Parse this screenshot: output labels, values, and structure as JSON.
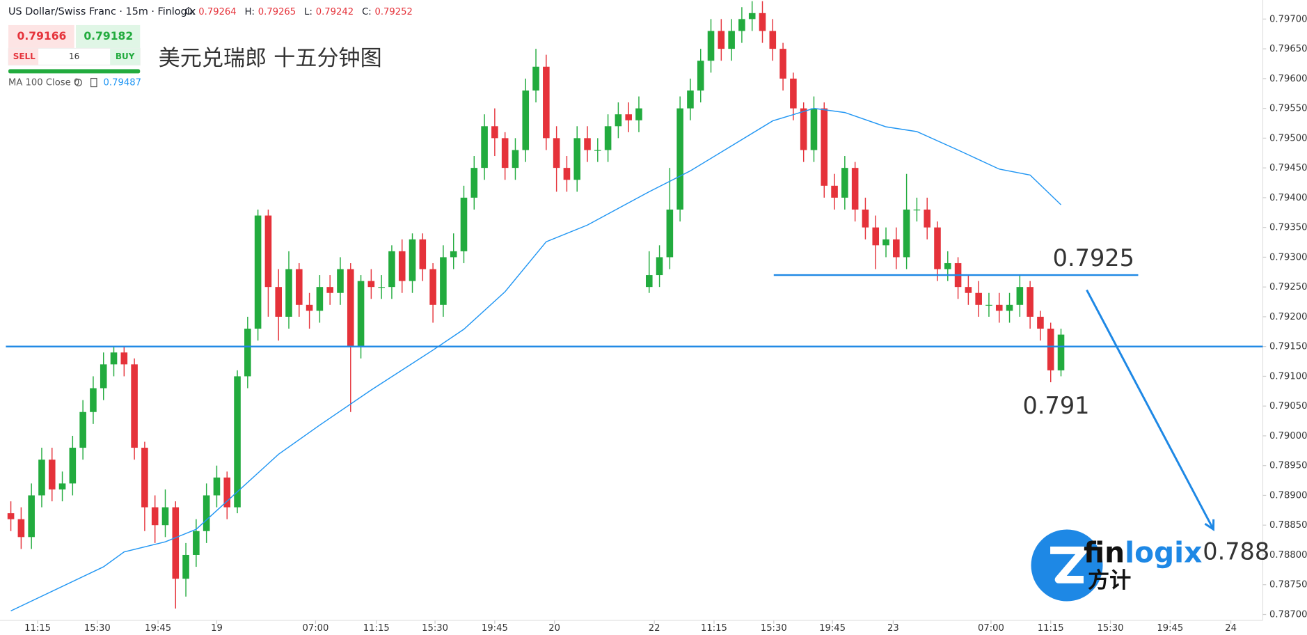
{
  "header": {
    "symbol": "US Dollar/Swiss Franc · 15m · Finlogix",
    "ohlc": [
      {
        "label": "O:",
        "value": 0.79264
      },
      {
        "label": "H:",
        "value": 0.79265
      },
      {
        "label": "L:",
        "value": 0.79242
      },
      {
        "label": "C:",
        "value": 0.79252
      }
    ],
    "sell_price": 0.79166,
    "sell": "SELL",
    "spread": 16,
    "buy_price": 0.79182,
    "buy": "BUY",
    "indicator": "MA 100 Close 0",
    "indicator_value": 0.79487
  },
  "chart_data": {
    "type": "candlestick",
    "title": "美元兑瑞郎 十五分钟图",
    "up_color": "#22ab3e",
    "down_color": "#e5323a",
    "open": [
      0.7887,
      0.7886,
      0.7883,
      0.789,
      0.7896,
      0.7891,
      0.7892,
      0.7898,
      0.7904,
      0.7908,
      0.7912,
      0.7914,
      0.7912,
      0.7898,
      0.7888,
      0.7885,
      0.7888,
      0.7876,
      0.788,
      0.7884,
      0.789,
      0.7893,
      0.7888,
      0.791,
      0.7918,
      0.7937,
      0.7925,
      0.792,
      0.7928,
      0.7922,
      0.7921,
      0.7925,
      0.7924,
      0.7928,
      0.7915,
      0.7926,
      0.7925,
      0.7925,
      0.7931,
      0.7926,
      0.7933,
      0.7928,
      0.7922,
      0.793,
      0.7931,
      0.794,
      0.7945,
      0.7952,
      0.795,
      0.7945,
      0.7948,
      0.7958,
      0.7962,
      0.795,
      0.7945,
      0.7943,
      0.795,
      0.7948,
      0.7948,
      0.7952,
      0.7954,
      0.7953,
      0.7925,
      0.7927,
      0.793,
      0.7938,
      0.7955,
      0.7958,
      0.7963,
      0.7968,
      0.7965,
      0.7968,
      0.797,
      0.7971,
      0.7968,
      0.7965,
      0.796,
      0.7955,
      0.7948,
      0.7955,
      0.7942,
      0.794,
      0.7945,
      0.7938,
      0.7935,
      0.7932,
      0.7933,
      0.793,
      0.7938,
      0.7938,
      0.7935,
      0.7928,
      0.7929,
      0.7925,
      0.7924,
      0.7922,
      0.7922,
      0.7921,
      0.7922,
      0.7925,
      0.792,
      0.7918,
      0.7911
    ],
    "high": [
      0.7889,
      0.7888,
      0.7892,
      0.7898,
      0.7898,
      0.7894,
      0.79,
      0.7906,
      0.791,
      0.7914,
      0.7915,
      0.7915,
      0.7913,
      0.7899,
      0.789,
      0.7891,
      0.7889,
      0.7882,
      0.7886,
      0.7892,
      0.7895,
      0.7894,
      0.7911,
      0.792,
      0.7938,
      0.7938,
      0.7928,
      0.7931,
      0.7929,
      0.7924,
      0.7927,
      0.7927,
      0.793,
      0.7929,
      0.7927,
      0.7928,
      0.7927,
      0.7932,
      0.7933,
      0.7934,
      0.7934,
      0.7929,
      0.7932,
      0.7934,
      0.7942,
      0.7947,
      0.7954,
      0.7955,
      0.7951,
      0.795,
      0.796,
      0.7965,
      0.7964,
      0.7952,
      0.7947,
      0.7952,
      0.7952,
      0.795,
      0.7954,
      0.7956,
      0.7956,
      0.7957,
      0.7931,
      0.7932,
      0.7945,
      0.7957,
      0.796,
      0.7965,
      0.797,
      0.797,
      0.797,
      0.7972,
      0.7973,
      0.7973,
      0.797,
      0.7966,
      0.7961,
      0.7956,
      0.7957,
      0.7956,
      0.7944,
      0.7947,
      0.7946,
      0.794,
      0.7937,
      0.7935,
      0.7935,
      0.7944,
      0.794,
      0.794,
      0.7936,
      0.7931,
      0.793,
      0.7927,
      0.7926,
      0.7924,
      0.7924,
      0.7924,
      0.7927,
      0.7926,
      0.7921,
      0.7919,
      0.7918
    ],
    "low": [
      0.7884,
      0.7881,
      0.7881,
      0.7888,
      0.7889,
      0.7889,
      0.789,
      0.7896,
      0.7902,
      0.7906,
      0.791,
      0.791,
      0.7896,
      0.7884,
      0.7882,
      0.7883,
      0.7871,
      0.7873,
      0.7878,
      0.7882,
      0.7888,
      0.7886,
      0.7887,
      0.7908,
      0.7916,
      0.792,
      0.7916,
      0.7918,
      0.792,
      0.7918,
      0.7919,
      0.7922,
      0.7922,
      0.7904,
      0.7913,
      0.7923,
      0.7923,
      0.7923,
      0.7924,
      0.7924,
      0.7926,
      0.7919,
      0.792,
      0.7928,
      0.7929,
      0.7938,
      0.7943,
      0.7947,
      0.7943,
      0.7943,
      0.7946,
      0.7956,
      0.7948,
      0.7941,
      0.7941,
      0.7941,
      0.7946,
      0.7946,
      0.7946,
      0.795,
      0.7951,
      0.7951,
      0.7924,
      0.7925,
      0.7928,
      0.7936,
      0.7953,
      0.7956,
      0.7961,
      0.7963,
      0.7963,
      0.7966,
      0.7968,
      0.7966,
      0.7963,
      0.7958,
      0.7953,
      0.7946,
      0.7946,
      0.794,
      0.7938,
      0.7938,
      0.7936,
      0.7933,
      0.7928,
      0.793,
      0.7928,
      0.7928,
      0.7936,
      0.7933,
      0.7926,
      0.7926,
      0.7923,
      0.7922,
      0.792,
      0.792,
      0.7919,
      0.7919,
      0.792,
      0.7918,
      0.7916,
      0.7909,
      0.791
    ],
    "close": [
      0.7886,
      0.7883,
      0.789,
      0.7896,
      0.7891,
      0.7892,
      0.7898,
      0.7904,
      0.7908,
      0.7912,
      0.7914,
      0.7912,
      0.7898,
      0.7888,
      0.7885,
      0.7888,
      0.7876,
      0.788,
      0.7884,
      0.789,
      0.7893,
      0.7888,
      0.791,
      0.7918,
      0.7937,
      0.7925,
      0.792,
      0.7928,
      0.7922,
      0.7921,
      0.7925,
      0.7924,
      0.7928,
      0.7915,
      0.7926,
      0.7925,
      0.7925,
      0.7931,
      0.7926,
      0.7933,
      0.7928,
      0.7922,
      0.793,
      0.7931,
      0.794,
      0.7945,
      0.7952,
      0.795,
      0.7945,
      0.7948,
      0.7958,
      0.7962,
      0.795,
      0.7945,
      0.7943,
      0.795,
      0.7948,
      0.7948,
      0.7952,
      0.7954,
      0.7953,
      0.7955,
      0.7927,
      0.793,
      0.7938,
      0.7955,
      0.7958,
      0.7963,
      0.7968,
      0.7965,
      0.7968,
      0.797,
      0.7971,
      0.7968,
      0.7965,
      0.796,
      0.7955,
      0.7948,
      0.7955,
      0.7942,
      0.794,
      0.7945,
      0.7938,
      0.7935,
      0.7932,
      0.7933,
      0.793,
      0.7938,
      0.7938,
      0.7935,
      0.7928,
      0.7929,
      0.7925,
      0.7924,
      0.7922,
      0.7922,
      0.7921,
      0.7922,
      0.7925,
      0.792,
      0.7918,
      0.7911,
      0.7917
    ],
    "ma": {
      "color": "#2196f3",
      "x": [
        0,
        9,
        11,
        15,
        18,
        22,
        26,
        30,
        35,
        41,
        44,
        48,
        52,
        56,
        62,
        66,
        70,
        74,
        78,
        81,
        85,
        88,
        92,
        96,
        99,
        102
      ],
      "values": [
        0.78706,
        0.7878,
        0.78805,
        0.78822,
        0.78843,
        0.78906,
        0.78969,
        0.79018,
        0.79077,
        0.79144,
        0.79179,
        0.79242,
        0.79326,
        0.79354,
        0.7941,
        0.79445,
        0.79487,
        0.79529,
        0.7955,
        0.79543,
        0.79519,
        0.79511,
        0.7948,
        0.79448,
        0.79438,
        0.79388
      ]
    },
    "levels": [
      {
        "value": 0.7915
      },
      {
        "value": 0.7927,
        "from": 74.1,
        "to": 109.5
      }
    ],
    "arrow": {
      "x": [
        104.5,
        116.8
      ],
      "y": [
        0.79245,
        0.78843
      ]
    },
    "annotations": [
      "0.7925",
      "0.791",
      "0.788"
    ],
    "xlim": [
      -1.05,
      121.6
    ],
    "ylim": [
      0.7869,
      0.79732
    ],
    "xticks": [
      {
        "value": 2.6,
        "label": "11:15"
      },
      {
        "value": 8.4,
        "label": "15:30"
      },
      {
        "value": 14.3,
        "label": "19:45"
      },
      {
        "value": 20,
        "label": "19"
      },
      {
        "value": 29.6,
        "label": "07:00"
      },
      {
        "value": 35.5,
        "label": "11:15"
      },
      {
        "value": 41.2,
        "label": "15:30"
      },
      {
        "value": 47,
        "label": "19:45"
      },
      {
        "value": 52.8,
        "label": "20"
      },
      {
        "value": 62.5,
        "label": "22"
      },
      {
        "value": 68.3,
        "label": "11:15"
      },
      {
        "value": 74.1,
        "label": "15:30"
      },
      {
        "value": 79.8,
        "label": "19:45"
      },
      {
        "value": 85.7,
        "label": "23"
      },
      {
        "value": 95.2,
        "label": "07:00"
      },
      {
        "value": 101,
        "label": "11:15"
      },
      {
        "value": 106.8,
        "label": "15:30"
      },
      {
        "value": 112.6,
        "label": "19:45"
      },
      {
        "value": 118.5,
        "label": "24"
      }
    ],
    "yticks": [
      {
        "value": 0.787,
        "label": "0.78700"
      },
      {
        "value": 0.7875,
        "label": "0.78750"
      },
      {
        "value": 0.788,
        "label": "0.78800"
      },
      {
        "value": 0.7885,
        "label": "0.78850"
      },
      {
        "value": 0.789,
        "label": "0.78900"
      },
      {
        "value": 0.7895,
        "label": "0.78950"
      },
      {
        "value": 0.79,
        "label": "0.79000"
      },
      {
        "value": 0.7905,
        "label": "0.79050"
      },
      {
        "value": 0.791,
        "label": "0.79100"
      },
      {
        "value": 0.7915,
        "label": "0.79150"
      },
      {
        "value": 0.792,
        "label": "0.79200"
      },
      {
        "value": 0.7925,
        "label": "0.79250"
      },
      {
        "value": 0.793,
        "label": "0.79300"
      },
      {
        "value": 0.7935,
        "label": "0.79350"
      },
      {
        "value": 0.794,
        "label": "0.79400"
      },
      {
        "value": 0.7945,
        "label": "0.79450"
      },
      {
        "value": 0.795,
        "label": "0.79500"
      },
      {
        "value": 0.7955,
        "label": "0.79550"
      },
      {
        "value": 0.796,
        "label": "0.79600"
      },
      {
        "value": 0.7965,
        "label": "0.79650"
      },
      {
        "value": 0.797,
        "label": "0.79700"
      }
    ],
    "grid": false
  }
}
